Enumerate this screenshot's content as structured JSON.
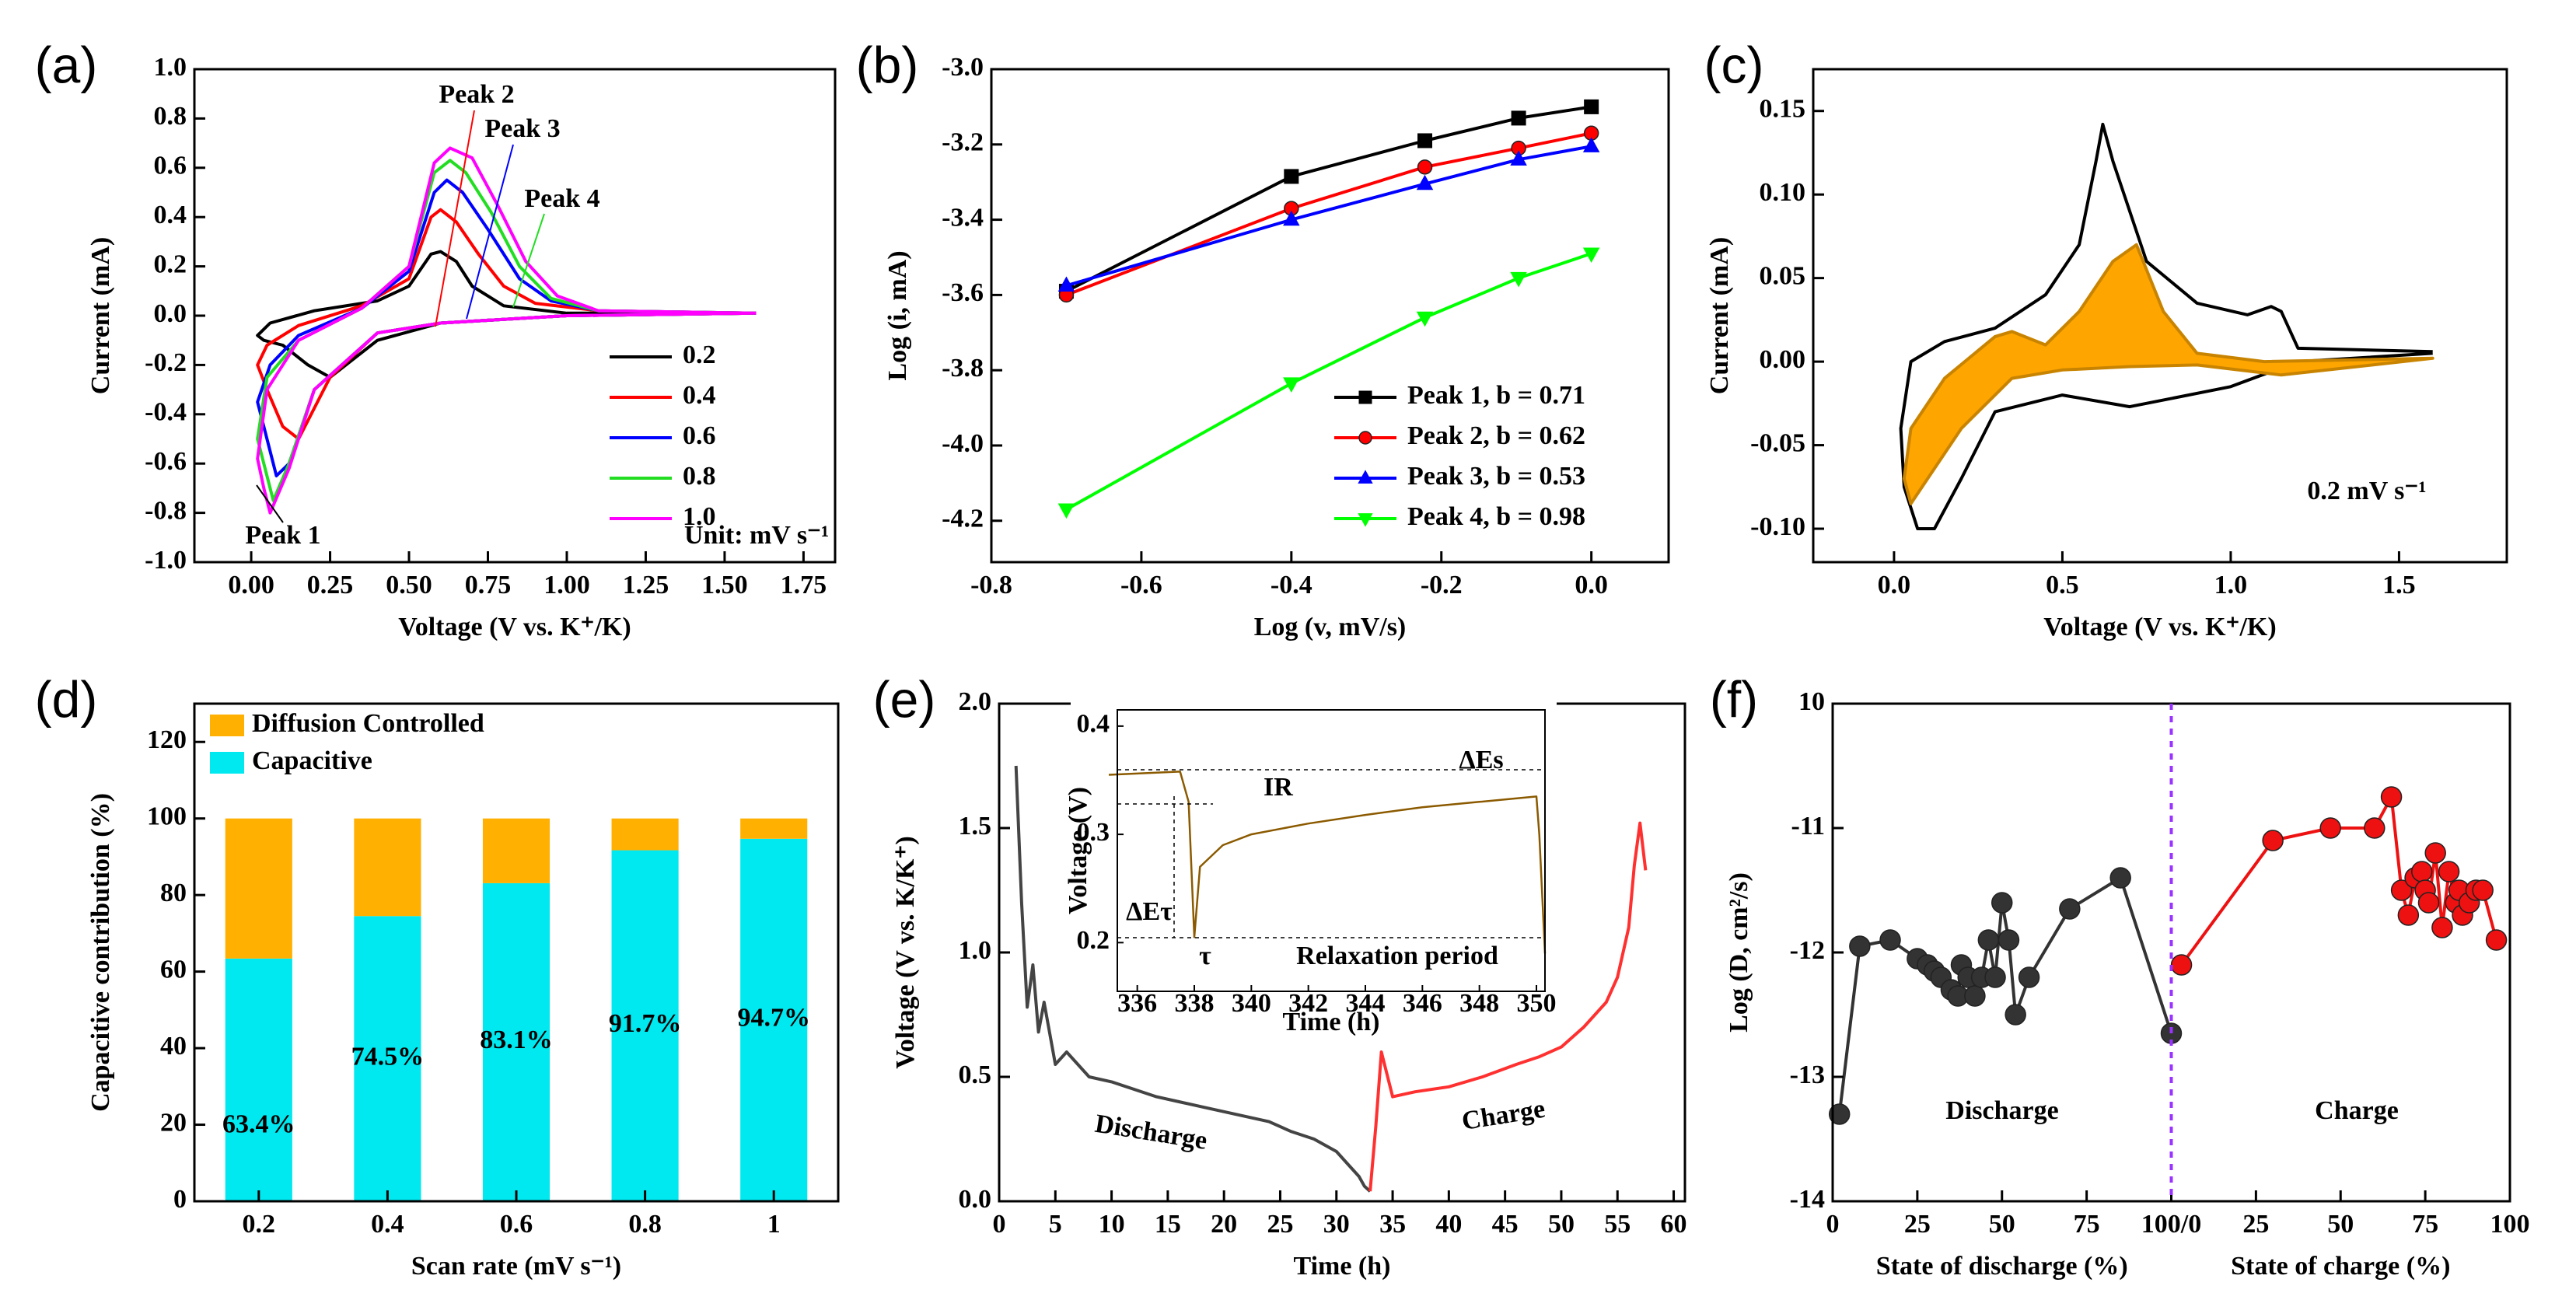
{
  "chart_data": [
    {
      "type": "line",
      "label": "(a)",
      "xlabel": "Voltage (V vs. K⁺/K)",
      "ylabel": "Current (mA)",
      "xlim": [
        -0.18,
        1.85
      ],
      "ylim": [
        -1.0,
        1.0
      ],
      "xticks": [
        {
          "value": 0,
          "label": "0.00"
        },
        0.25,
        {
          "value": 0.5,
          "label": "0.50"
        },
        0.75,
        {
          "value": 1,
          "label": "1.00"
        },
        1.25,
        {
          "value": 1.5,
          "label": "1.50"
        },
        1.75
      ],
      "yticks": [
        {
          "value": -1,
          "label": "-1.0"
        },
        -0.8,
        -0.6,
        -0.4,
        -0.2,
        {
          "value": 0,
          "label": "0.0"
        },
        0.2,
        0.4,
        0.6,
        0.8,
        {
          "value": 1,
          "label": "1.0"
        }
      ],
      "legend": "lower right",
      "series": [
        {
          "name": "0.2",
          "color": "#000000",
          "x": [
            1.6,
            1.0,
            0.6,
            0.4,
            0.3,
            0.25,
            0.18,
            0.1,
            0.04,
            0.02,
            0.06,
            0.2,
            0.4,
            0.5,
            0.57,
            0.6,
            0.65,
            0.7,
            0.8,
            1.0,
            1.6
          ],
          "values": [
            0.01,
            0.0,
            -0.03,
            -0.1,
            -0.2,
            -0.25,
            -0.2,
            -0.12,
            -0.1,
            -0.08,
            -0.03,
            0.02,
            0.06,
            0.12,
            0.25,
            0.26,
            0.22,
            0.12,
            0.04,
            0.01,
            0.01
          ]
        },
        {
          "name": "0.4",
          "color": "#ff0000",
          "x": [
            1.6,
            1.0,
            0.6,
            0.4,
            0.25,
            0.15,
            0.1,
            0.05,
            0.02,
            0.05,
            0.15,
            0.35,
            0.5,
            0.57,
            0.6,
            0.65,
            0.72,
            0.8,
            0.9,
            1.1,
            1.6
          ],
          "values": [
            0.01,
            0.0,
            -0.03,
            -0.07,
            -0.25,
            -0.5,
            -0.45,
            -0.3,
            -0.2,
            -0.12,
            -0.04,
            0.04,
            0.15,
            0.4,
            0.43,
            0.38,
            0.25,
            0.12,
            0.05,
            0.02,
            0.01
          ]
        },
        {
          "name": "0.6",
          "color": "#0000ff",
          "x": [
            1.6,
            1.0,
            0.6,
            0.4,
            0.2,
            0.12,
            0.08,
            0.04,
            0.02,
            0.06,
            0.15,
            0.35,
            0.5,
            0.58,
            0.62,
            0.67,
            0.75,
            0.85,
            0.95,
            1.1,
            1.6
          ],
          "values": [
            0.01,
            0.0,
            -0.03,
            -0.07,
            -0.3,
            -0.6,
            -0.65,
            -0.45,
            -0.35,
            -0.2,
            -0.08,
            0.03,
            0.18,
            0.5,
            0.55,
            0.5,
            0.35,
            0.15,
            0.06,
            0.02,
            0.01
          ]
        },
        {
          "name": "0.8",
          "color": "#22dd22",
          "x": [
            1.6,
            1.0,
            0.6,
            0.4,
            0.2,
            0.12,
            0.07,
            0.04,
            0.02,
            0.05,
            0.15,
            0.35,
            0.5,
            0.58,
            0.63,
            0.68,
            0.76,
            0.85,
            0.95,
            1.1,
            1.6
          ],
          "values": [
            0.01,
            0.0,
            -0.03,
            -0.07,
            -0.3,
            -0.6,
            -0.75,
            -0.6,
            -0.5,
            -0.25,
            -0.1,
            0.03,
            0.2,
            0.58,
            0.63,
            0.58,
            0.42,
            0.2,
            0.07,
            0.02,
            0.01
          ]
        },
        {
          "name": "1.0",
          "color": "#ff00ff",
          "x": [
            1.6,
            1.0,
            0.6,
            0.4,
            0.2,
            0.12,
            0.06,
            0.04,
            0.02,
            0.05,
            0.15,
            0.35,
            0.5,
            0.58,
            0.63,
            0.7,
            0.78,
            0.87,
            0.97,
            1.1,
            1.6
          ],
          "values": [
            0.01,
            0.0,
            -0.03,
            -0.07,
            -0.3,
            -0.62,
            -0.8,
            -0.7,
            -0.58,
            -0.3,
            -0.1,
            0.03,
            0.2,
            0.62,
            0.68,
            0.64,
            0.45,
            0.22,
            0.08,
            0.02,
            0.01
          ]
        }
      ],
      "annotations": [
        {
          "text": "Peak 1",
          "color": "#000000"
        },
        {
          "text": "Peak 2",
          "color": "#ff0000"
        },
        {
          "text": "Peak 3",
          "color": "#0000ff"
        },
        {
          "text": "Peak 4",
          "color": "#22dd22"
        },
        {
          "text": "Unit: mV s⁻¹",
          "color": "#000000"
        }
      ]
    },
    {
      "type": "line",
      "label": "(b)",
      "xlabel": "Log (v, mV/s)",
      "ylabel": "Log (i, mA)",
      "xlim": [
        -0.8,
        0.103
      ],
      "ylim": [
        -4.31,
        -3.0
      ],
      "xticks": [
        -0.8,
        -0.6,
        -0.4,
        -0.2,
        {
          "value": 0,
          "label": "0.0"
        }
      ],
      "yticks": [
        {
          "value": -3.0,
          "label": "-3.0"
        },
        -3.2,
        -3.4,
        -3.6,
        -3.8,
        {
          "value": -4.0,
          "label": "-4.0"
        },
        -4.2
      ],
      "legend": "lower right",
      "x": [
        -0.7,
        -0.4,
        -0.222,
        -0.097,
        0
      ],
      "series": [
        {
          "name": "Peak 1, b = 0.71",
          "color": "#000000",
          "marker": "square",
          "values": [
            -3.59,
            -3.285,
            -3.19,
            -3.13,
            -3.1
          ]
        },
        {
          "name": "Peak 2, b = 0.62",
          "color": "#ff0000",
          "marker": "circle",
          "values": [
            -3.6,
            -3.37,
            -3.26,
            -3.21,
            -3.17
          ]
        },
        {
          "name": "Peak 3, b = 0.53",
          "color": "#0000ff",
          "marker": "triangle-up",
          "values": [
            -3.575,
            -3.4,
            -3.305,
            -3.24,
            -3.205
          ]
        },
        {
          "name": "Peak 4, b = 0.98",
          "color": "#00ff00",
          "marker": "triangle-down",
          "values": [
            -4.17,
            -3.835,
            -3.66,
            -3.555,
            -3.49
          ]
        }
      ]
    },
    {
      "type": "line",
      "label": "(c)",
      "xlabel": "Voltage (V vs. K⁺/K)",
      "ylabel": "Current (mA)",
      "xlim": [
        -0.24,
        1.82
      ],
      "ylim": [
        -0.12,
        0.175
      ],
      "xticks": [
        {
          "value": 0,
          "label": "0.0"
        },
        0.5,
        {
          "value": 1,
          "label": "1.0"
        },
        1.5
      ],
      "yticks": [
        {
          "value": -0.1,
          "label": "-0.10"
        },
        -0.05,
        {
          "value": 0,
          "label": "0.00"
        },
        0.05,
        {
          "value": 0.1,
          "label": "0.10"
        },
        0.15
      ],
      "series": [
        {
          "color": "#000000",
          "x": [
            1.6,
            1.2,
            1.0,
            0.7,
            0.5,
            0.3,
            0.2,
            0.12,
            0.07,
            0.03,
            0.02,
            0.05,
            0.15,
            0.3,
            0.45,
            0.55,
            0.6,
            0.62,
            0.65,
            0.75,
            0.9,
            1.05,
            1.12,
            1.15,
            1.2,
            1.6
          ],
          "values": [
            0.005,
            0.0,
            -0.015,
            -0.027,
            -0.02,
            -0.03,
            -0.07,
            -0.1,
            -0.1,
            -0.075,
            -0.04,
            0.0,
            0.012,
            0.02,
            0.04,
            0.07,
            0.12,
            0.142,
            0.12,
            0.06,
            0.035,
            0.028,
            0.033,
            0.03,
            0.008,
            0.006
          ]
        },
        {
          "color": "#ffa500",
          "fill": true,
          "x": [
            1.6,
            1.15,
            0.9,
            0.7,
            0.5,
            0.35,
            0.2,
            0.1,
            0.05,
            0.03,
            0.05,
            0.15,
            0.3,
            0.35,
            0.45,
            0.55,
            0.65,
            0.72,
            0.8,
            0.9,
            1.1,
            1.6
          ],
          "values": [
            0.002,
            -0.008,
            -0.002,
            -0.003,
            -0.005,
            -0.01,
            -0.04,
            -0.07,
            -0.085,
            -0.07,
            -0.04,
            -0.01,
            0.015,
            0.018,
            0.01,
            0.03,
            0.06,
            0.07,
            0.03,
            0.005,
            0.0,
            0.002
          ]
        }
      ],
      "annotations": [
        {
          "text": "0.2 mV s⁻¹",
          "color": "#000000"
        }
      ]
    },
    {
      "type": "bar",
      "label": "(d)",
      "xlabel": "Scan rate (mV s⁻¹)",
      "ylabel": "Capacitive contribution (%)",
      "categories": [
        "0.2",
        "0.4",
        "0.6",
        "0.8",
        "1"
      ],
      "ylim": [
        0,
        130
      ],
      "yticks": [
        0,
        20,
        40,
        60,
        80,
        100,
        120
      ],
      "legend": "upper left",
      "stacked": true,
      "series": [
        {
          "name": "Capacitive",
          "color": "#00e8f0",
          "values": [
            63.4,
            74.5,
            83.1,
            91.7,
            94.7
          ],
          "value_labels": [
            "63.4%",
            "74.5%",
            "83.1%",
            "91.7%",
            "94.7%"
          ]
        },
        {
          "name": "Diffusion Controlled",
          "color": "#ffb000",
          "values": [
            36.6,
            25.5,
            16.9,
            8.3,
            5.3
          ]
        }
      ]
    },
    {
      "type": "line",
      "label": "(e)",
      "xlabel": "Time (h)",
      "ylabel": "Voltage (V vs. K/K⁺)",
      "xlim": [
        0,
        61
      ],
      "ylim": [
        0,
        2.0
      ],
      "xticks": [
        0,
        5,
        10,
        15,
        20,
        25,
        30,
        35,
        40,
        45,
        50,
        55,
        60
      ],
      "yticks": [
        {
          "value": 0,
          "label": "0.0"
        },
        0.5,
        {
          "value": 1,
          "label": "1.0"
        },
        1.5,
        {
          "value": 2,
          "label": "2.0"
        }
      ],
      "series": [
        {
          "name": "Discharge",
          "color": "#444444",
          "x": [
            1.5,
            2,
            2.5,
            3,
            3.5,
            4,
            5,
            6,
            8,
            10,
            12,
            14,
            16,
            18,
            20,
            22,
            24,
            26,
            28,
            30,
            31,
            32,
            32.5,
            33
          ],
          "values": [
            1.75,
            1.2,
            0.78,
            0.95,
            0.68,
            0.8,
            0.55,
            0.6,
            0.5,
            0.48,
            0.45,
            0.42,
            0.4,
            0.38,
            0.36,
            0.34,
            0.32,
            0.28,
            0.25,
            0.2,
            0.15,
            0.1,
            0.06,
            0.04
          ]
        },
        {
          "name": "Charge",
          "color": "#ff3030",
          "x": [
            33,
            33.5,
            34,
            35,
            37,
            40,
            43,
            46,
            48,
            50,
            52,
            54,
            55,
            56,
            56.5,
            57,
            57.5
          ],
          "values": [
            0.04,
            0.3,
            0.6,
            0.42,
            0.44,
            0.46,
            0.5,
            0.55,
            0.58,
            0.62,
            0.7,
            0.8,
            0.9,
            1.1,
            1.35,
            1.52,
            1.33
          ]
        }
      ],
      "annotations": [
        {
          "text": "Discharge",
          "color": "#444444"
        },
        {
          "text": "Charge",
          "color": "#ff3030"
        }
      ],
      "inset": {
        "type": "line",
        "xlabel": "Time (h)",
        "ylabel": "Voltage (V)",
        "xlim": [
          335.3,
          350.3
        ],
        "ylim": [
          0.155,
          0.415
        ],
        "xticks": [
          336,
          338,
          340,
          342,
          344,
          346,
          348,
          350
        ],
        "yticks": [
          0.2,
          0.3,
          0.4
        ],
        "series": [
          {
            "color": "#8b5a00",
            "x": [
              335,
              337.5,
              337.8,
              338.0,
              338.2,
              339,
              340,
              342,
              344,
              346,
              348,
              350,
              350.1,
              350.3
            ],
            "values": [
              0.355,
              0.358,
              0.33,
              0.205,
              0.27,
              0.29,
              0.3,
              0.31,
              0.318,
              0.325,
              0.33,
              0.335,
              0.3,
              0.19
            ]
          }
        ],
        "annotations": [
          {
            "text": "IR",
            "color": "#000000"
          },
          {
            "text": "ΔEs",
            "color": "#000000"
          },
          {
            "text": "ΔEτ",
            "color": "#000000"
          },
          {
            "text": "τ",
            "color": "#000000"
          },
          {
            "text": "Relaxation period",
            "color": "#000000"
          }
        ]
      }
    },
    {
      "type": "line",
      "label": "(f)",
      "xlabel": "State of discharge (%)",
      "x2label": "State of charge (%)",
      "ylabel": "Log (D, cm²/s)",
      "xlim": [
        0,
        100
      ],
      "x2lim": [
        0,
        100
      ],
      "ylim": [
        -14,
        -10
      ],
      "xticks": [
        0,
        25,
        50,
        75,
        {
          "value": 100,
          "label": "100/0"
        }
      ],
      "x2ticks": [
        25,
        50,
        75,
        100
      ],
      "yticks": [
        -14,
        -13,
        -12,
        -11,
        {
          "value": -10,
          "label": "10"
        }
      ],
      "series": [
        {
          "name": "Discharge",
          "color": "#333333",
          "marker": "circle",
          "x": [
            2,
            8,
            17,
            25,
            28,
            30,
            32,
            35,
            37,
            38,
            40,
            42,
            44,
            46,
            48,
            50,
            52,
            54,
            58,
            70,
            85,
            100
          ],
          "values": [
            -13.3,
            -11.95,
            -11.9,
            -12.05,
            -12.1,
            -12.15,
            -12.2,
            -12.3,
            -12.35,
            -12.1,
            -12.2,
            -12.35,
            -12.2,
            -11.9,
            -12.2,
            -11.6,
            -11.9,
            -12.5,
            -12.2,
            -11.65,
            -11.4,
            -12.65
          ]
        },
        {
          "name": "Charge",
          "color": "#ee1111",
          "marker": "circle",
          "axis": "x2",
          "x": [
            3,
            30,
            47,
            60,
            65,
            68,
            70,
            72,
            74,
            75,
            76,
            78,
            80,
            82,
            84,
            85,
            86,
            88,
            90,
            92,
            96
          ],
          "values": [
            -12.1,
            -11.1,
            -11.0,
            -11.0,
            -10.75,
            -11.5,
            -11.7,
            -11.4,
            -11.35,
            -11.5,
            -11.6,
            -11.2,
            -11.8,
            -11.35,
            -11.6,
            -11.5,
            -11.7,
            -11.6,
            -11.5,
            -11.5,
            -11.9
          ]
        }
      ],
      "annotations": [
        {
          "text": "Discharge",
          "color": "#000000"
        },
        {
          "text": "Charge",
          "color": "#ee1111"
        }
      ]
    }
  ]
}
